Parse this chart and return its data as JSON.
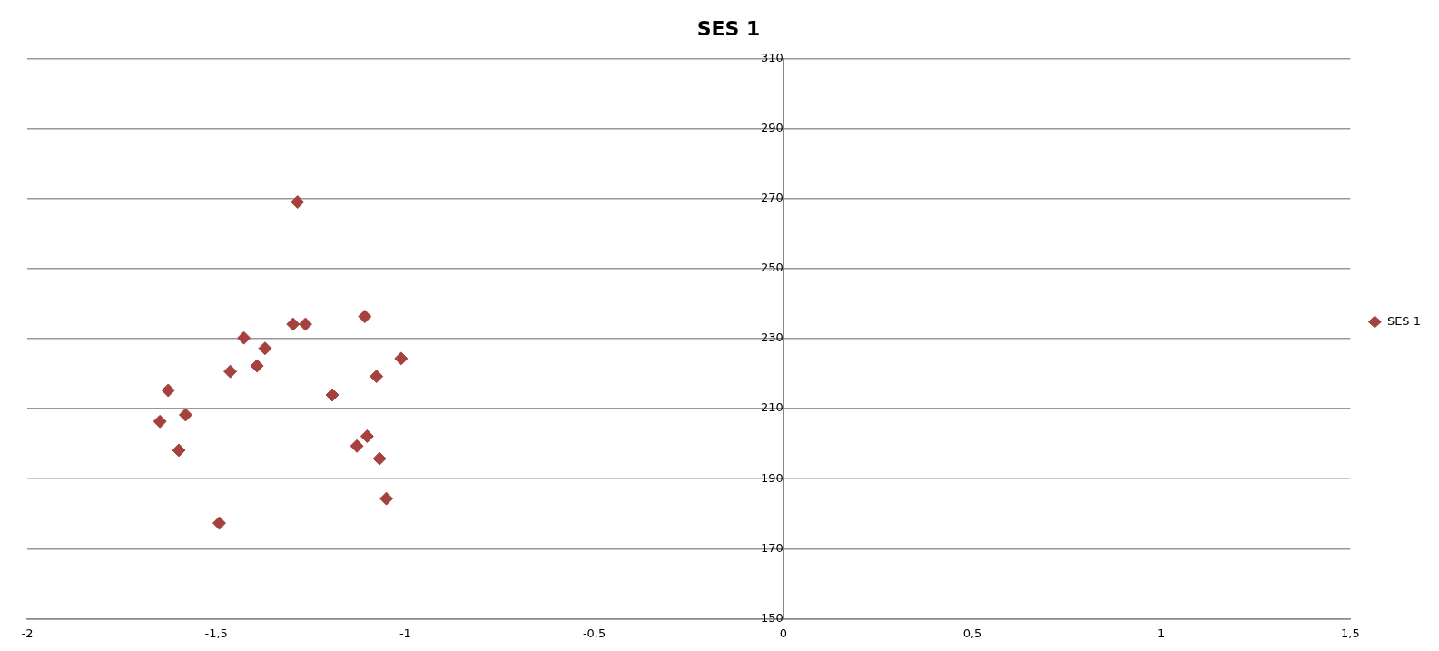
{
  "chart_data": {
    "type": "scatter",
    "title": "SES 1",
    "x": [
      -1.285,
      -1.297,
      -1.264,
      -1.107,
      -1.427,
      -1.371,
      -1.011,
      -1.392,
      -1.463,
      -1.076,
      -1.627,
      -1.193,
      -1.581,
      -1.649,
      -1.101,
      -1.128,
      -1.599,
      -1.068,
      -1.05,
      -1.492
    ],
    "series": [
      {
        "name": "SES 1",
        "color": "#a5423f",
        "values": [
          269.0,
          234.1,
          234.1,
          236.3,
          230.2,
          227.2,
          224.3,
          222.2,
          220.6,
          219.2,
          215.2,
          213.9,
          208.2,
          206.3,
          202.1,
          199.3,
          198.1,
          195.7,
          184.3,
          177.3
        ]
      }
    ],
    "xlim": [
      -2,
      1.5
    ],
    "xticks": [
      -2,
      {
        "value": -1.5,
        "label": "-1,5"
      },
      -1,
      {
        "value": -0.5,
        "label": "-0,5"
      },
      0,
      {
        "value": 0.5,
        "label": "0,5"
      },
      1,
      {
        "value": 1.5,
        "label": "1,5"
      }
    ],
    "ylim": [
      150,
      310
    ],
    "yticks": [
      150,
      170,
      190,
      210,
      230,
      250,
      270,
      290,
      310
    ],
    "grid": "y",
    "legend": "right",
    "marker": "diamond"
  }
}
